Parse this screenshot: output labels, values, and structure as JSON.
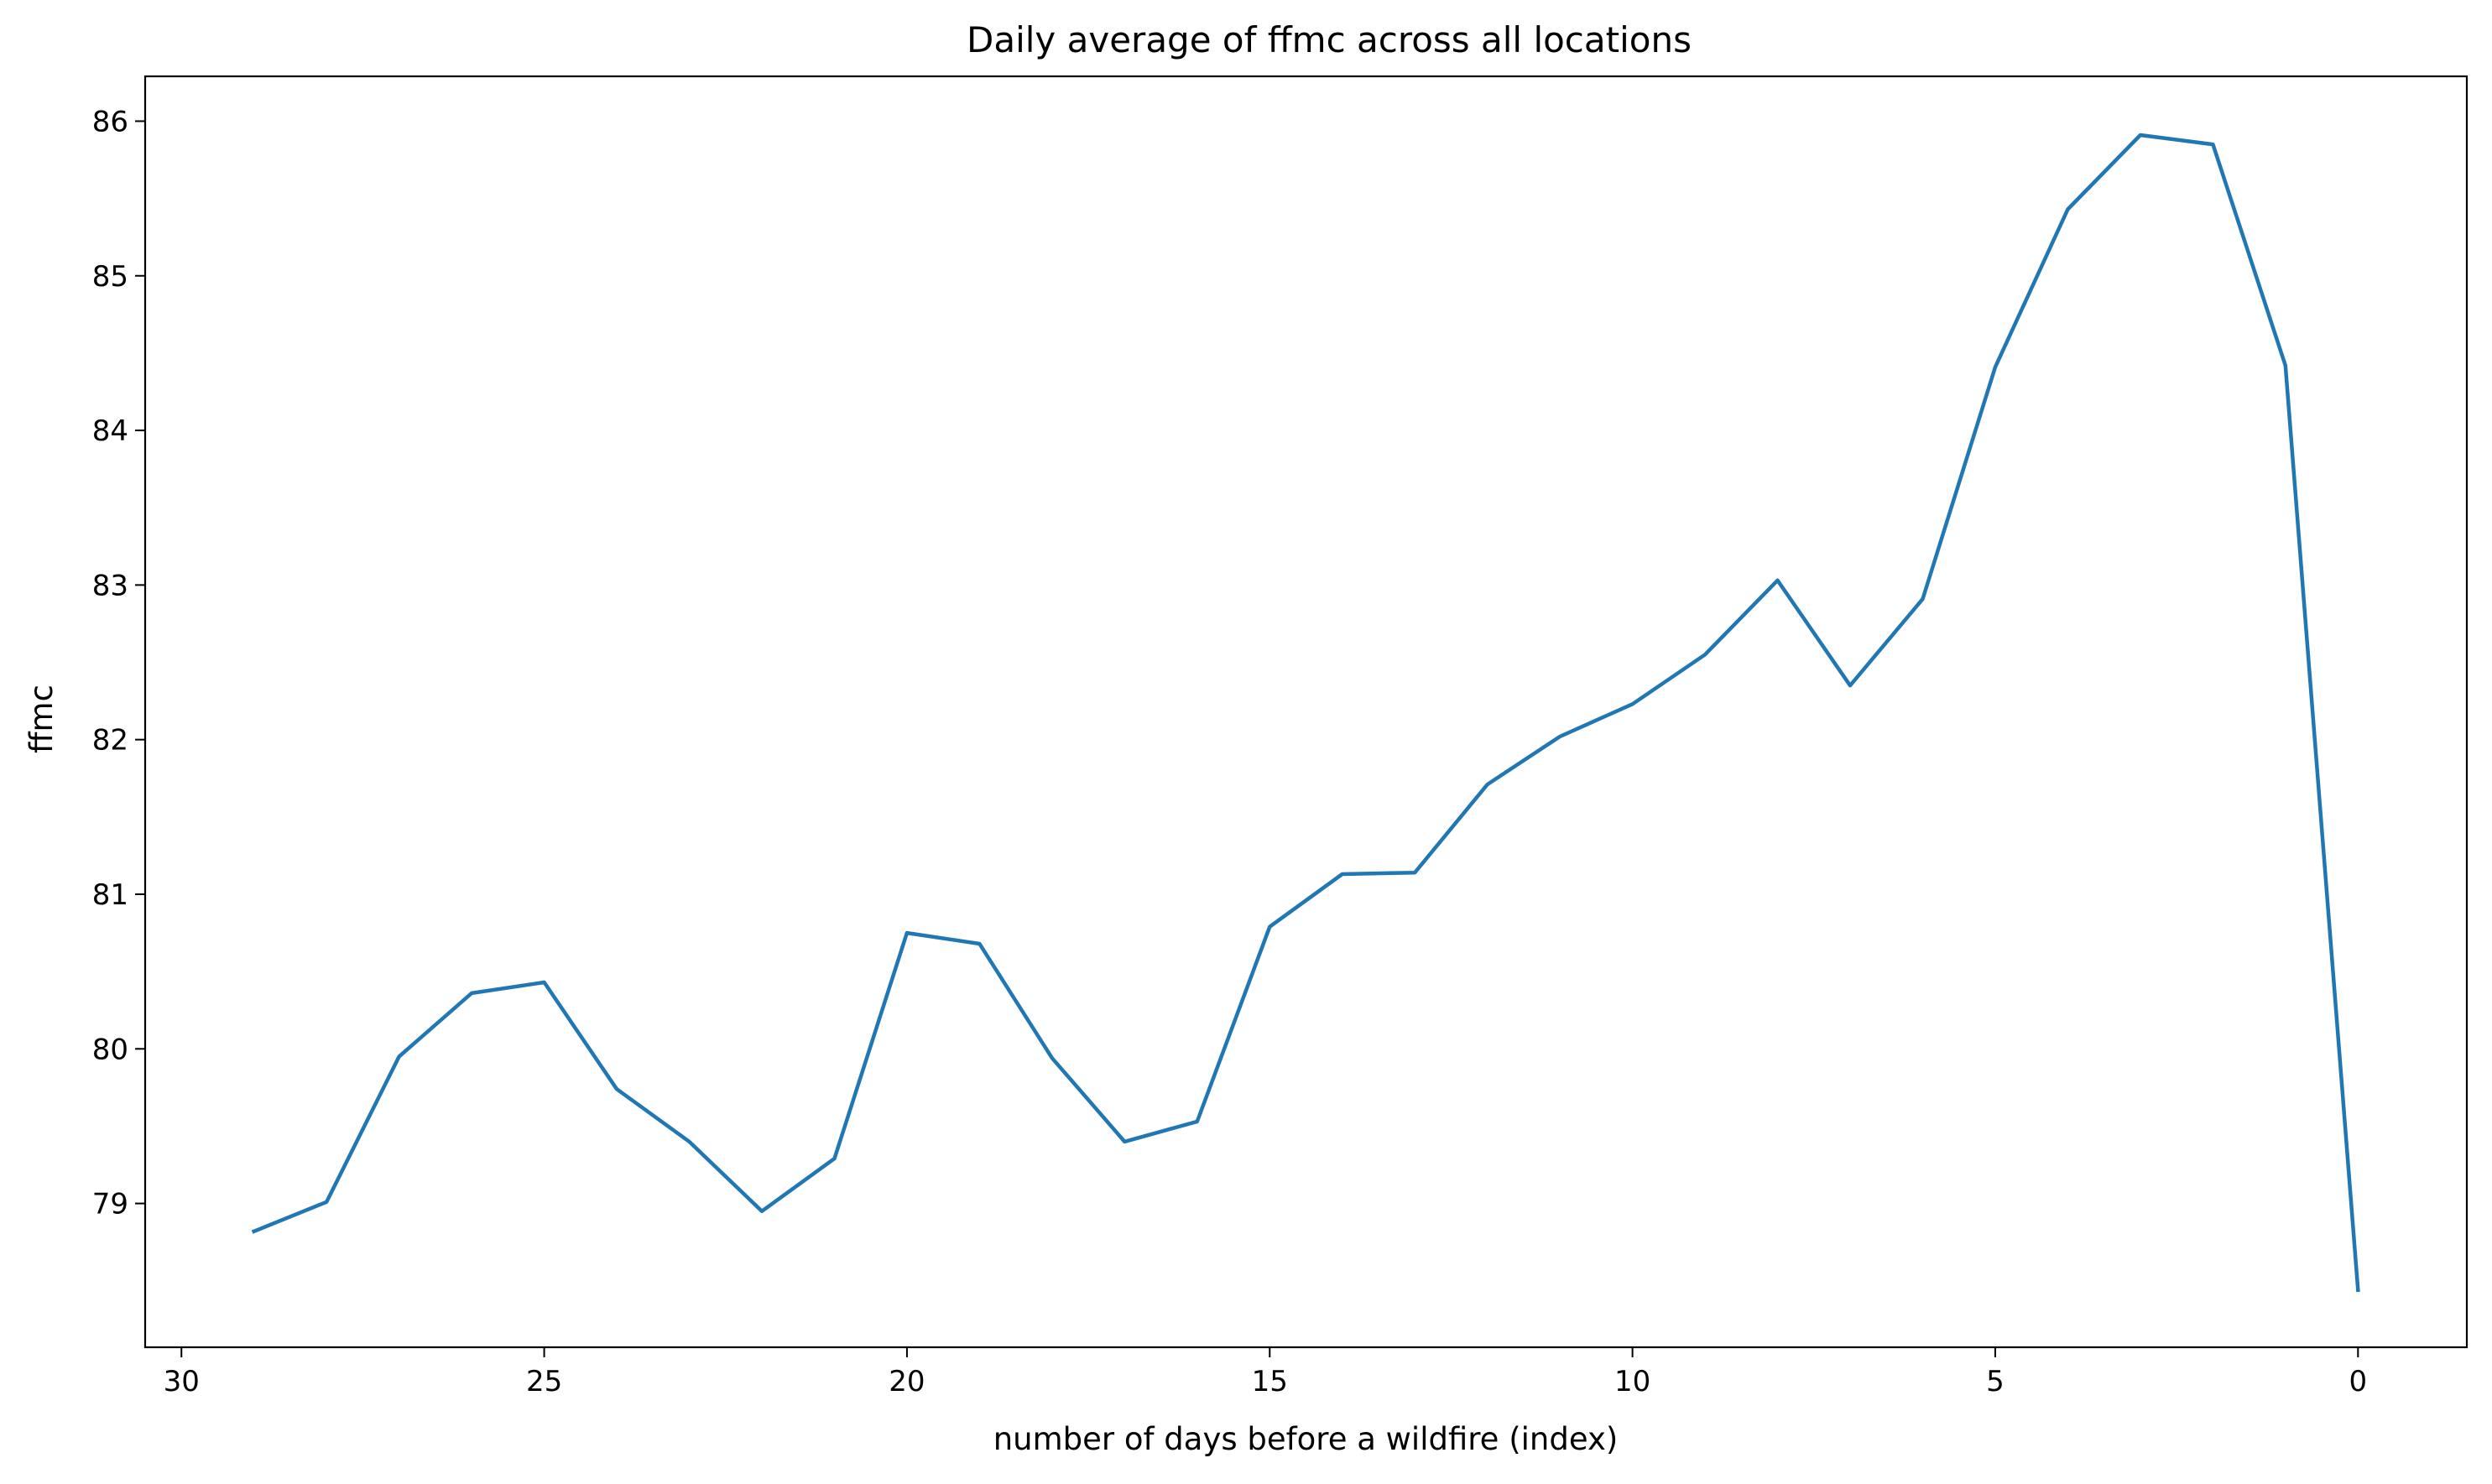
{
  "chart_data": {
    "type": "line",
    "title": "Daily average of ffmc across all locations",
    "xlabel": "number of days before a wildfire (index)",
    "ylabel": "ffmc",
    "x_inverted": true,
    "xlim": [
      30.5,
      -1.5
    ],
    "ylim": [
      78.07,
      86.29
    ],
    "xticks": [
      30,
      25,
      20,
      15,
      10,
      5,
      0
    ],
    "yticks": [
      79,
      80,
      81,
      82,
      83,
      84,
      85,
      86
    ],
    "grid": false,
    "legend": "none",
    "series": [
      {
        "color": "#1f77b4",
        "x": [
          29,
          28,
          27,
          26,
          25,
          24,
          23,
          22,
          21,
          20,
          19,
          18,
          17,
          16,
          15,
          14,
          13,
          12,
          11,
          10,
          9,
          8,
          7,
          6,
          5,
          4,
          3,
          2,
          1,
          0
        ],
        "y": [
          78.82,
          79.01,
          79.95,
          80.36,
          80.43,
          79.74,
          79.4,
          78.95,
          79.29,
          80.75,
          80.68,
          79.94,
          79.4,
          79.53,
          80.79,
          81.13,
          81.14,
          81.71,
          82.02,
          82.23,
          82.55,
          83.03,
          82.35,
          82.91,
          84.41,
          85.43,
          85.91,
          85.85,
          84.42,
          78.44
        ]
      }
    ]
  }
}
